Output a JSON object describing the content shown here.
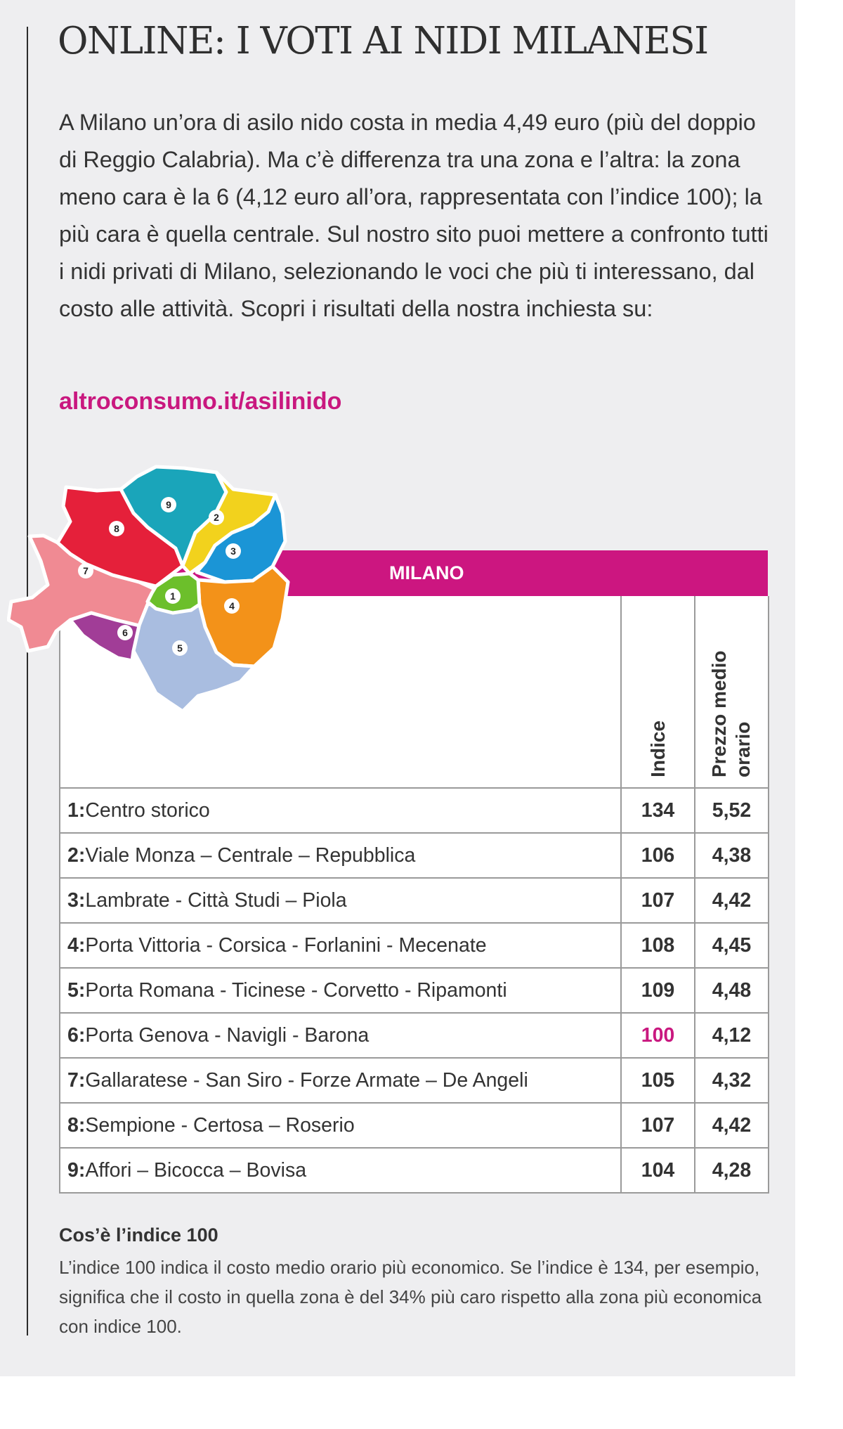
{
  "title": "ONLINE: I VOTI AI NIDI MILANESI",
  "intro": "A Milano un’ora di asilo nido costa in media 4,49 euro (più del doppio di Reggio Calabria). Ma c’è differenza tra una zona e l’altra: la zona meno cara è la 6 (4,12 euro all’ora, rappresentata con l’indice 100); la più cara è quella centrale. Sul nostro sito puoi mettere a confronto tutti i nidi privati di Milano, selezionando le voci che più ti interessano, dal costo alle attività. Scopri i risultati della nostra inchiesta su:",
  "link": "altroconsumo.it/asilinido",
  "colors": {
    "accent": "#cc1680",
    "zone1": "#6cbf2b",
    "zone2": "#f2d21d",
    "zone3": "#1b95d6",
    "zone4": "#f39219",
    "zone5": "#a9bde0",
    "zone6": "#a13d97",
    "zone7": "#f08a93",
    "zone8": "#e5203a",
    "zone9": "#1aa5ba"
  },
  "map": {
    "labels": [
      "1",
      "2",
      "3",
      "4",
      "5",
      "6",
      "7",
      "8",
      "9"
    ]
  },
  "table": {
    "header": "MILANO",
    "col_index": "Indice",
    "col_price": "Prezzo medio orario",
    "rows": [
      {
        "num": "1:",
        "name": "Centro storico",
        "index": "134",
        "price": "5,52"
      },
      {
        "num": "2:",
        "name": "Viale Monza – Centrale – Repubblica",
        "index": "106",
        "price": "4,38"
      },
      {
        "num": "3:",
        "name": "Lambrate - Città Studi – Piola",
        "index": "107",
        "price": "4,42"
      },
      {
        "num": "4:",
        "name": "Porta Vittoria - Corsica - Forlanini - Mecenate",
        "index": "108",
        "price": "4,45"
      },
      {
        "num": "5:",
        "name": "Porta Romana - Ticinese - Corvetto - Ripamonti",
        "index": "109",
        "price": "4,48"
      },
      {
        "num": "6:",
        "name": "Porta Genova - Navigli - Barona",
        "index": "100",
        "price": "4,12"
      },
      {
        "num": "7:",
        "name": "Gallaratese - San Siro - Forze Armate – De Angeli",
        "index": "105",
        "price": "4,32"
      },
      {
        "num": "8:",
        "name": "Sempione - Certosa – Roserio",
        "index": "107",
        "price": "4,42"
      },
      {
        "num": "9:",
        "name": "Affori – Bicocca – Bovisa",
        "index": "104",
        "price": "4,28"
      }
    ]
  },
  "note": {
    "title": "Cos’è l’indice 100",
    "text": "L’indice 100 indica il costo medio orario più economico. Se l’indice è 134, per esempio, significa che il costo in quella zona è del 34% più caro rispetto alla zona più economica con indice 100."
  }
}
